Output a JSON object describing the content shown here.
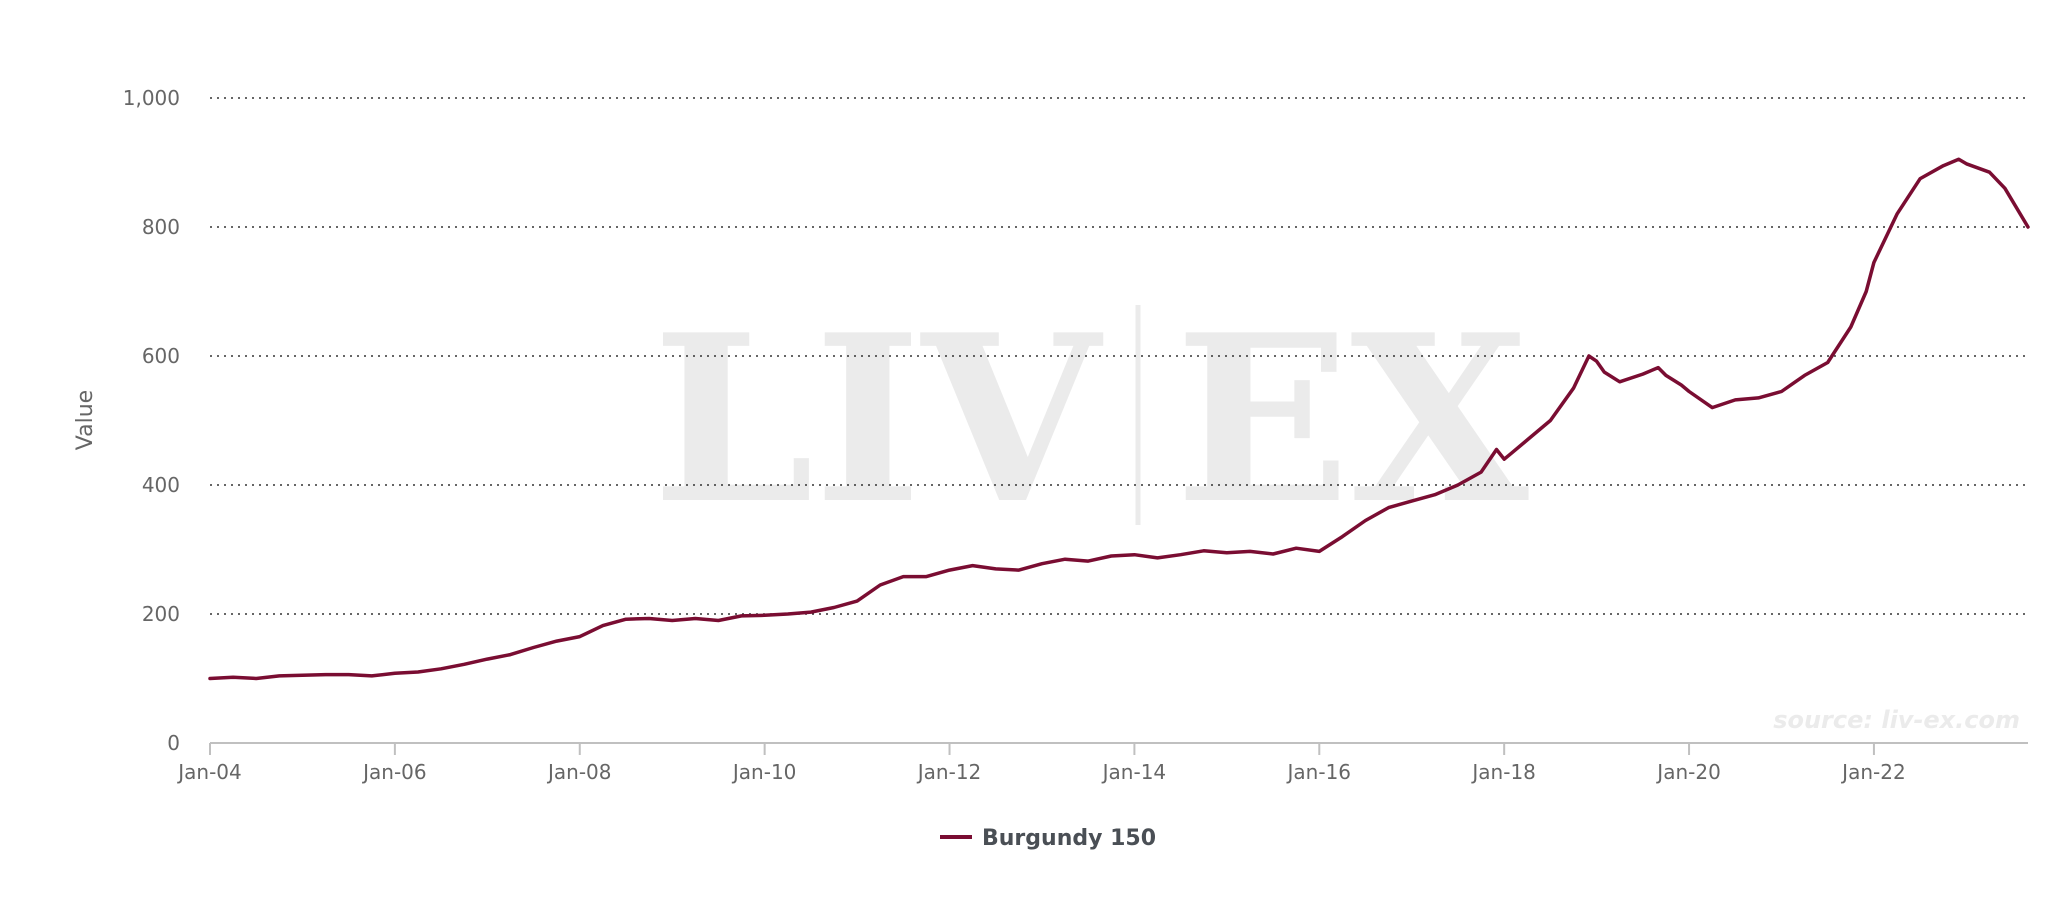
{
  "colors": {
    "series": "#7a0d32",
    "grid": "#333333",
    "axis": "#c0c0c0",
    "text": "#666666",
    "watermark": "#ebebeb"
  },
  "watermark": {
    "left": "LIV",
    "right": "EX"
  },
  "source_note": "source: liv-ex.com",
  "chart_data": {
    "type": "line",
    "title": "",
    "xlabel": "",
    "ylabel": "Value",
    "xlim": [
      "2004-01",
      "2023-09"
    ],
    "ylim": [
      0,
      1000
    ],
    "yticks": [
      0,
      200,
      400,
      600,
      800,
      1000
    ],
    "ytick_labels": [
      "0",
      "200",
      "400",
      "600",
      "800",
      "1,000"
    ],
    "xticks": [
      "2004-01",
      "2006-01",
      "2008-01",
      "2010-01",
      "2012-01",
      "2014-01",
      "2016-01",
      "2018-01",
      "2020-01",
      "2022-01"
    ],
    "xtick_labels": [
      "Jan-04",
      "Jan-06",
      "Jan-08",
      "Jan-10",
      "Jan-12",
      "Jan-14",
      "Jan-16",
      "Jan-18",
      "Jan-20",
      "Jan-22"
    ],
    "grid": "horizontal dotted",
    "legend": "bottom-center",
    "series": [
      {
        "name": "Burgundy 150",
        "x": [
          "2004-01",
          "2004-04",
          "2004-07",
          "2004-10",
          "2005-01",
          "2005-04",
          "2005-07",
          "2005-10",
          "2006-01",
          "2006-04",
          "2006-07",
          "2006-10",
          "2007-01",
          "2007-04",
          "2007-07",
          "2007-10",
          "2008-01",
          "2008-04",
          "2008-07",
          "2008-10",
          "2009-01",
          "2009-04",
          "2009-07",
          "2009-10",
          "2010-01",
          "2010-04",
          "2010-07",
          "2010-10",
          "2011-01",
          "2011-04",
          "2011-07",
          "2011-10",
          "2012-01",
          "2012-04",
          "2012-07",
          "2012-10",
          "2013-01",
          "2013-04",
          "2013-07",
          "2013-10",
          "2014-01",
          "2014-04",
          "2014-07",
          "2014-10",
          "2015-01",
          "2015-04",
          "2015-07",
          "2015-10",
          "2016-01",
          "2016-04",
          "2016-07",
          "2016-10",
          "2017-01",
          "2017-04",
          "2017-07",
          "2017-10",
          "2017-12",
          "2018-01",
          "2018-02",
          "2018-04",
          "2018-07",
          "2018-10",
          "2018-12",
          "2019-01",
          "2019-02",
          "2019-04",
          "2019-07",
          "2019-09",
          "2019-10",
          "2019-12",
          "2020-01",
          "2020-04",
          "2020-07",
          "2020-10",
          "2021-01",
          "2021-04",
          "2021-07",
          "2021-10",
          "2021-12",
          "2022-01",
          "2022-04",
          "2022-07",
          "2022-10",
          "2022-12",
          "2023-01",
          "2023-04",
          "2023-06",
          "2023-09"
        ],
        "values": [
          100,
          102,
          100,
          104,
          105,
          106,
          106,
          104,
          108,
          110,
          115,
          122,
          130,
          137,
          148,
          158,
          165,
          182,
          192,
          193,
          190,
          193,
          190,
          197,
          198,
          200,
          203,
          210,
          220,
          245,
          258,
          258,
          268,
          275,
          270,
          268,
          278,
          285,
          282,
          290,
          292,
          287,
          292,
          298,
          295,
          297,
          293,
          302,
          297,
          320,
          345,
          365,
          375,
          385,
          400,
          420,
          455,
          440,
          450,
          470,
          500,
          550,
          600,
          592,
          575,
          560,
          572,
          582,
          570,
          555,
          545,
          520,
          532,
          535,
          545,
          570,
          590,
          645,
          700,
          745,
          820,
          875,
          895,
          905,
          898,
          885,
          860,
          800
        ]
      }
    ]
  }
}
